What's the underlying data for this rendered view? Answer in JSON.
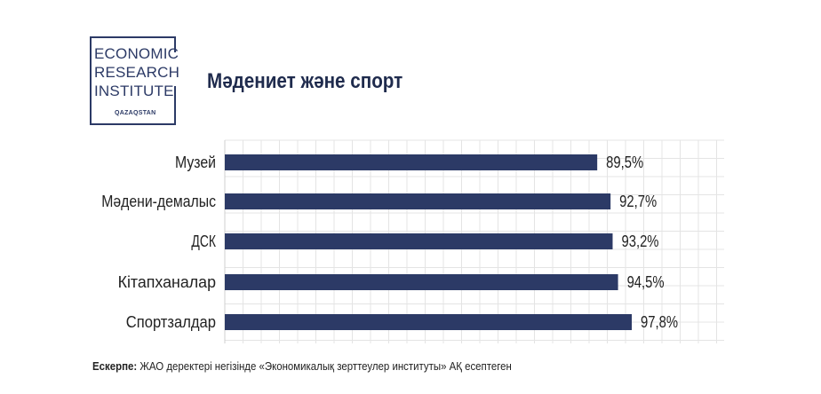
{
  "logo": {
    "lines": [
      "ECONOMIC",
      "RESEARCH",
      "INSTITUTE"
    ],
    "sub": "QAZAQSTAN"
  },
  "title": "Мәдениет және спорт",
  "chart_data": {
    "type": "bar",
    "orientation": "horizontal",
    "categories": [
      "Музей",
      "Мәдени-демалыс",
      "ДСК",
      "Кітапханалар",
      "Спортзалдар"
    ],
    "values": [
      89.5,
      92.7,
      93.2,
      94.5,
      97.8
    ],
    "value_labels": [
      "89,5%",
      "92,7%",
      "93,2%",
      "94,5%",
      "97,8%"
    ],
    "xlim": [
      0,
      120
    ],
    "bar_color": "#2c3a66",
    "grid": true,
    "title": "Мәдениет және спорт"
  },
  "footnote": {
    "label": "Ескерпе:",
    "text": " ЖАО деректері негізінде «Экономикалық зерттеулер институты» АҚ есептеген"
  }
}
